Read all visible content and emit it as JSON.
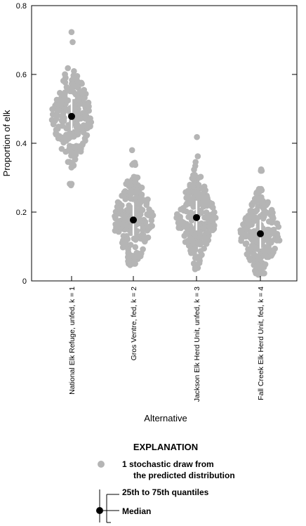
{
  "chart_data": {
    "type": "scatter",
    "subtype": "beeswarm-with-median-and-quartiles",
    "ylabel": "Proportion of elk",
    "xlabel": "Alternative",
    "ylim": [
      0,
      0.8
    ],
    "yticks": [
      "0",
      "0.2",
      "0.4",
      "0.6",
      "0.8"
    ],
    "grid": false,
    "categories": [
      "National Elk Refuge, unfed, k = 1",
      "Gros Ventre, fed, k = 2",
      "Jackson Elk Herd Unit, unfed, k = 3",
      "Fall Creek Elk Herd Unit, fed, k = 4"
    ],
    "medians": [
      0.478,
      0.177,
      0.184,
      0.137
    ],
    "quartiles": [
      [
        0.437,
        0.542
      ],
      [
        0.133,
        0.226
      ],
      [
        0.147,
        0.233
      ],
      [
        0.094,
        0.178
      ]
    ],
    "draw_ranges": [
      [
        0.278,
        0.723
      ],
      [
        0.046,
        0.38
      ],
      [
        0.034,
        0.418
      ],
      [
        0.018,
        0.324
      ]
    ],
    "point_color": "#b5b5b5",
    "median_color": "#000000",
    "quartile_bar_color": "#ffffff"
  },
  "legend": {
    "title": "EXPLANATION",
    "draw_line1": "1 stochastic draw from",
    "draw_line2": "the predicted distribution",
    "quartile_label": "25th to 75th quantiles",
    "median_label": "Median"
  }
}
